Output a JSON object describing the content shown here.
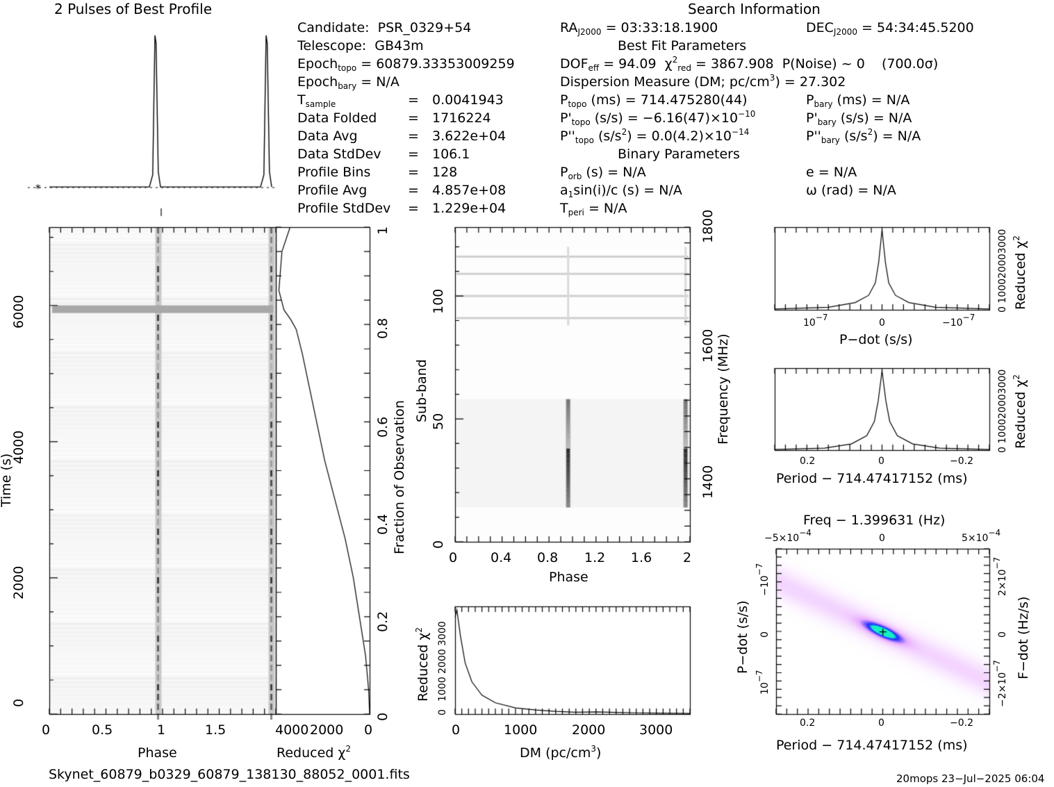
{
  "header": {
    "profile_title": "2 Pulses of Best Profile",
    "search_title": "Search Information",
    "best_fit_title": "Best Fit Parameters",
    "binary_title": "Binary Parameters"
  },
  "candidate_info": [
    {
      "label": "Candidate:",
      "value": "PSR_0329+54"
    },
    {
      "label": "Telescope:",
      "value": "GB43m"
    },
    {
      "label": "Epoch",
      "sub": "topo",
      "value": "= 60879.33353009259"
    },
    {
      "label": "Epoch",
      "sub": "bary",
      "value": "= N/A"
    },
    {
      "label": "T",
      "sub": "sample",
      "value": "0.0041943"
    },
    {
      "label": "Data Folded",
      "value": "1716224"
    },
    {
      "label": "Data Avg",
      "value": "3.622e+04"
    },
    {
      "label": "Data StdDev",
      "value": "106.1"
    },
    {
      "label": "Profile Bins",
      "value": "128"
    },
    {
      "label": "Profile Avg",
      "value": "4.857e+08"
    },
    {
      "label": "Profile StdDev",
      "value": "1.229e+04"
    }
  ],
  "search_info": {
    "ra": "= 03:33:18.1900",
    "dec": "= 54:34:45.5200",
    "dof": "= 94.09",
    "chi2": "= 3867.908",
    "pnoise": "P(Noise) ~ 0",
    "sigma": "(700.0σ)",
    "dm": "Dispersion Measure (DM; pc/cm",
    "dm_value": ") = 27.302",
    "ptopo": "(ms) =  714.475280(44)",
    "pbary": "(ms) = N/A",
    "pdtopo": "(s/s) = −6.16(47)×10",
    "pdtopo_exp": "−10",
    "pdbary": "(s/s) = N/A",
    "pddtopo": "(s/s",
    "pddtopo_val": ") = 0.0(4.2)×10",
    "pddtopo_exp": "−14",
    "pddbary": ") = N/A",
    "porb": "(s) = N/A",
    "a1": "sin(i)/c (s) = N/A",
    "tperi": "= N/A",
    "e": "e = N/A",
    "omega": "ω (rad) = N/A"
  },
  "footer": {
    "filename": "Skynet_60879_b0329_60879_138130_88052_0001.fits",
    "stamp": "20mops 23−Jul−2025 06:04"
  },
  "colors": {
    "ink": "#000000",
    "grid_dark": "#444444",
    "map_low": "#ffffff",
    "map_mid": "#2a2cff",
    "map_high": "#19e0c0"
  },
  "chart_data": [
    {
      "type": "line",
      "name": "profile",
      "title": "2 Pulses of Best Profile",
      "x": [
        0,
        0.9,
        0.93,
        0.95,
        0.96,
        0.98,
        1.0,
        1.9,
        1.93,
        1.95,
        1.96,
        1.98,
        2.0
      ],
      "y": [
        0.0,
        0.0,
        0.08,
        1.0,
        0.95,
        0.1,
        0.0,
        0.0,
        0.08,
        1.0,
        0.95,
        0.1,
        0.0
      ],
      "xlim": [
        0,
        2
      ],
      "ylim": [
        -0.05,
        1.05
      ],
      "annotations": [
        "*"
      ]
    },
    {
      "type": "heatmap",
      "name": "time-phase",
      "xlabel": "Phase",
      "ylabel": "Time (s)",
      "xlim": [
        0,
        2
      ],
      "ylim": [
        0,
        7150
      ],
      "x_ticks": [
        "0",
        "0.5",
        "1",
        "1.5"
      ],
      "y_ticks": [
        "0",
        "2000",
        "4000",
        "6000"
      ],
      "pulse_phases": [
        0.96,
        1.96
      ],
      "bright_row_time": 5950
    },
    {
      "type": "line",
      "name": "reduced-chi2-vs-time",
      "xlabel": "Reduced χ",
      "ylabel": "Fraction of Observation",
      "x_ticks": [
        "4000",
        "2000",
        "0"
      ],
      "y_ticks": [
        "0",
        "0.2",
        "0.4",
        "0.6",
        "0.8",
        "1"
      ],
      "xlim": [
        4600,
        0
      ],
      "ylim": [
        0,
        1
      ],
      "x": [
        0,
        50,
        200,
        500,
        800,
        1200,
        1700,
        2200,
        2600,
        3000,
        3300,
        3600,
        3867,
        4200,
        4450,
        4300,
        3900
      ],
      "y": [
        0,
        0.05,
        0.12,
        0.2,
        0.28,
        0.36,
        0.44,
        0.52,
        0.6,
        0.68,
        0.74,
        0.79,
        0.81,
        0.83,
        0.87,
        0.95,
        1.0
      ]
    },
    {
      "type": "heatmap",
      "name": "subband-phase",
      "xlabel": "Phase",
      "ylabel": "Sub-band",
      "y2label": "Frequency (MHz)",
      "x_ticks": [
        "0",
        "0.4",
        "0.8",
        "1.2",
        "1.6",
        "2"
      ],
      "y_ticks": [
        "0",
        "50",
        "100"
      ],
      "y2_ticks": [
        "1400",
        "1600",
        "1800"
      ],
      "xlim": [
        0,
        2
      ],
      "ylim": [
        0,
        128
      ],
      "pulse_phases": [
        0.96,
        1.96
      ],
      "active_subbands": [
        14,
        58
      ],
      "rfi_subbands": [
        91,
        100,
        109,
        116
      ]
    },
    {
      "type": "line",
      "name": "dm-curve",
      "xlabel": "DM (pc/cm",
      "ylabel": "Reduced χ",
      "x_ticks": [
        "0",
        "1000",
        "2000",
        "3000"
      ],
      "y_ticks": [
        "0",
        "1000",
        "2000",
        "3000"
      ],
      "xlim": [
        0,
        3500
      ],
      "ylim": [
        0,
        4000
      ],
      "x": [
        0,
        27,
        80,
        150,
        250,
        400,
        600,
        900,
        1200,
        1500,
        1800,
        2100,
        2400,
        2700,
        3000,
        3300,
        3500
      ],
      "y": [
        3600,
        3867,
        2900,
        1900,
        1200,
        700,
        420,
        230,
        150,
        100,
        70,
        80,
        60,
        45,
        35,
        28,
        25
      ]
    },
    {
      "type": "line",
      "name": "pdot-curve",
      "xlabel": "P−dot (s/s)",
      "ylabel": "Reduced χ",
      "x_ticks": [
        "10",
        "0",
        "−10"
      ],
      "y_ticks": [
        "0",
        "1000",
        "2000",
        "3000"
      ],
      "xlim": [
        -1.6e-07,
        1.6e-07
      ],
      "ylim": [
        0,
        4000
      ],
      "x": [
        -1.6e-07,
        -8e-08,
        -4e-08,
        -2e-08,
        -1e-08,
        -5e-09,
        0,
        5e-09,
        1e-08,
        2e-08,
        4e-08,
        8e-08,
        1.6e-07
      ],
      "y": [
        40,
        120,
        350,
        700,
        1300,
        2300,
        3867,
        2300,
        1300,
        700,
        350,
        120,
        40
      ]
    },
    {
      "type": "line",
      "name": "period-curve",
      "xlabel": "Period − 714.47417152 (ms)",
      "ylabel": "Reduced χ",
      "x_ticks": [
        "0.2",
        "0",
        "−0.2"
      ],
      "y_ticks": [
        "0",
        "1000",
        "2000",
        "3000"
      ],
      "xlim": [
        0.28,
        -0.28
      ],
      "ylim": [
        0,
        4000
      ],
      "x": [
        0.28,
        0.15,
        0.08,
        0.04,
        0.02,
        0.01,
        0,
        -0.01,
        -0.02,
        -0.04,
        -0.08,
        -0.15,
        -0.28
      ],
      "y": [
        30,
        100,
        300,
        700,
        1400,
        2400,
        3867,
        2400,
        1400,
        700,
        300,
        100,
        30
      ]
    },
    {
      "type": "heatmap",
      "name": "period-pdot-plane",
      "title": "Freq − 1.399631 (Hz)",
      "xlabel": "Period − 714.47417152 (ms)",
      "ylabel": "P−dot (s/s)",
      "y2label": "F−dot (Hz/s)",
      "x_ticks": [
        "0.2",
        "0",
        "−0.2"
      ],
      "top_ticks": [
        "−5×10",
        "0",
        "5×10"
      ],
      "top_exp": "−4",
      "y_ticks": [
        "10",
        "0",
        "−10"
      ],
      "y_exp": "−7",
      "y2_ticks": [
        "−2×10",
        "0",
        "2×10"
      ],
      "y2_exp": "−7",
      "xlim": [
        0.28,
        -0.28
      ],
      "ylim": [
        -1.6e-07,
        1.6e-07
      ],
      "peak": [
        0,
        0
      ]
    }
  ]
}
